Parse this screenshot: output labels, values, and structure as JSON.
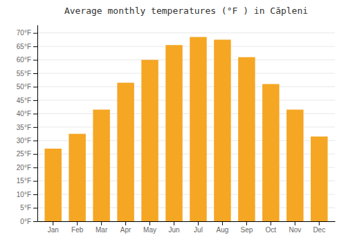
{
  "chart_data": {
    "type": "bar",
    "title": "Average monthly temperatures (°F ) in Căpleni",
    "categories": [
      "Jan",
      "Feb",
      "Mar",
      "Apr",
      "May",
      "Jun",
      "Jul",
      "Aug",
      "Sep",
      "Oct",
      "Nov",
      "Dec"
    ],
    "values": [
      27,
      32.5,
      41.5,
      51.5,
      60,
      65.5,
      68.5,
      67.5,
      61,
      51,
      41.5,
      31.5
    ],
    "color": "#F5A623",
    "ylim": [
      0,
      73
    ],
    "yticks": [
      {
        "value": 0,
        "label": "0°F"
      },
      {
        "value": 5,
        "label": "5°F"
      },
      {
        "value": 10,
        "label": "10°F"
      },
      {
        "value": 15,
        "label": "15°F"
      },
      {
        "value": 20,
        "label": "20°F"
      },
      {
        "value": 25,
        "label": "25°F"
      },
      {
        "value": 30,
        "label": "30°F"
      },
      {
        "value": 35,
        "label": "35°F"
      },
      {
        "value": 40,
        "label": "40°F"
      },
      {
        "value": 45,
        "label": "45°F"
      },
      {
        "value": 50,
        "label": "50°F"
      },
      {
        "value": 55,
        "label": "55°F"
      },
      {
        "value": 60,
        "label": "60°F"
      },
      {
        "value": 65,
        "label": "65°F"
      },
      {
        "value": 70,
        "label": "70°F"
      }
    ],
    "grid": true
  }
}
